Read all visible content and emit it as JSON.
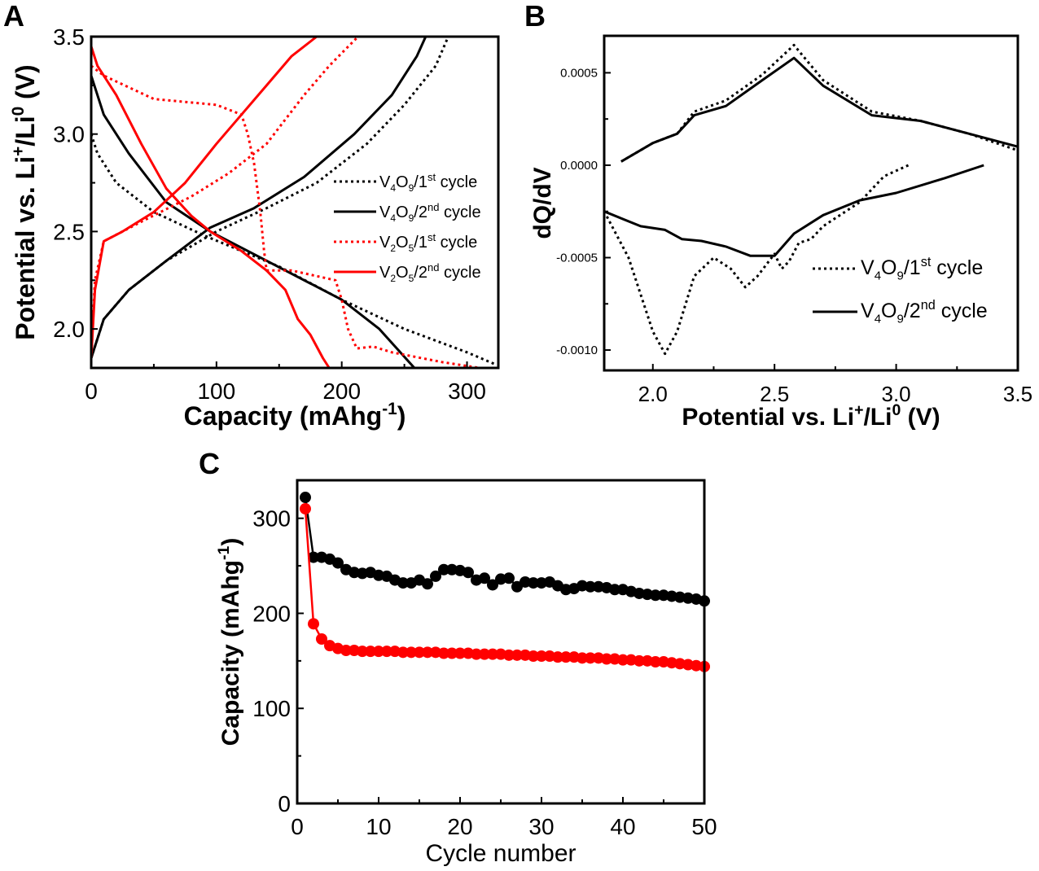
{
  "panels": {
    "a": "A",
    "b": "B",
    "c": "C"
  },
  "colors": {
    "black": "#000000",
    "red": "#ff0000",
    "tick_label_b": "#333333"
  },
  "chart_data": [
    {
      "id": "a",
      "type": "line",
      "title": "",
      "xlabel": [
        {
          "t": "Capacity (mAhg"
        },
        {
          "t": "-1",
          "s": "sup"
        },
        {
          "t": ")"
        }
      ],
      "ylabel": [
        {
          "t": "Potential vs. Li"
        },
        {
          "t": "+",
          "s": "sup"
        },
        {
          "t": "/Li"
        },
        {
          "t": "0",
          "s": "sup"
        },
        {
          "t": " (V)"
        }
      ],
      "xlim": [
        0,
        325
      ],
      "ylim": [
        1.8,
        3.5
      ],
      "xticks": [
        0,
        100,
        200,
        300
      ],
      "xtick_labels": [
        "0",
        "100",
        "200",
        "300"
      ],
      "yticks": [
        2.0,
        2.5,
        3.0,
        3.5
      ],
      "ytick_labels": [
        "2.0",
        "2.5",
        "3.0",
        "3.5"
      ],
      "grid": false,
      "legend_position": "right-middle",
      "series": [
        {
          "name": "V4O9/1st cycle",
          "legend": [
            {
              "t": "V"
            },
            {
              "t": "4",
              "s": "sub"
            },
            {
              "t": "O"
            },
            {
              "t": "9",
              "s": "sub"
            },
            {
              "t": "/1"
            },
            {
              "t": "st",
              "s": "sup"
            },
            {
              "t": " cycle"
            }
          ],
          "color": "#000000",
          "style": "dotted",
          "curves": [
            {
              "label": "discharge",
              "x": [
                0,
                5,
                20,
                50,
                90,
                150,
                200,
                250,
                300,
                322
              ],
              "y": [
                3.0,
                2.9,
                2.75,
                2.6,
                2.48,
                2.32,
                2.15,
                2.0,
                1.88,
                1.82
              ]
            },
            {
              "label": "charge",
              "x": [
                0,
                10,
                30,
                60,
                100,
                140,
                180,
                220,
                250,
                275,
                285
              ],
              "y": [
                1.85,
                2.05,
                2.2,
                2.35,
                2.5,
                2.62,
                2.75,
                2.95,
                3.15,
                3.35,
                3.5
              ]
            }
          ]
        },
        {
          "name": "V4O9/2nd cycle",
          "legend": [
            {
              "t": "V"
            },
            {
              "t": "4",
              "s": "sub"
            },
            {
              "t": "O"
            },
            {
              "t": "9",
              "s": "sub"
            },
            {
              "t": "/2"
            },
            {
              "t": "nd",
              "s": "sup"
            },
            {
              "t": " cycle"
            }
          ],
          "color": "#000000",
          "style": "solid",
          "curves": [
            {
              "label": "discharge",
              "x": [
                0,
                10,
                30,
                60,
                95,
                140,
                200,
                230,
                258
              ],
              "y": [
                3.3,
                3.1,
                2.9,
                2.65,
                2.5,
                2.35,
                2.15,
                2.0,
                1.8
              ]
            },
            {
              "label": "charge",
              "x": [
                0,
                10,
                30,
                60,
                95,
                130,
                170,
                210,
                240,
                260,
                267
              ],
              "y": [
                1.85,
                2.05,
                2.2,
                2.35,
                2.52,
                2.62,
                2.78,
                3.0,
                3.2,
                3.4,
                3.5
              ]
            }
          ]
        },
        {
          "name": "V2O5/1st cycle",
          "legend": [
            {
              "t": "V"
            },
            {
              "t": "2",
              "s": "sub"
            },
            {
              "t": "O"
            },
            {
              "t": "5",
              "s": "sub"
            },
            {
              "t": "/1"
            },
            {
              "t": "st",
              "s": "sup"
            },
            {
              "t": " cycle"
            }
          ],
          "color": "#ff0000",
          "style": "dotted",
          "curves": [
            {
              "label": "discharge",
              "x": [
                0,
                10,
                50,
                100,
                120,
                125,
                130,
                135,
                138,
                140,
                160,
                195,
                200,
                205,
                212,
                225,
                240,
                280,
                310
              ],
              "y": [
                3.35,
                3.3,
                3.18,
                3.15,
                3.1,
                3.0,
                2.85,
                2.6,
                2.4,
                2.3,
                2.3,
                2.25,
                2.15,
                2.0,
                1.9,
                1.91,
                1.88,
                1.83,
                1.8
              ]
            },
            {
              "label": "charge",
              "x": [
                0,
                3,
                10,
                40,
                80,
                110,
                140,
                170,
                190,
                213
              ],
              "y": [
                1.85,
                2.25,
                2.45,
                2.55,
                2.68,
                2.8,
                2.95,
                3.2,
                3.35,
                3.5
              ]
            }
          ]
        },
        {
          "name": "V2O5/2nd cycle",
          "legend": [
            {
              "t": "V"
            },
            {
              "t": "2",
              "s": "sub"
            },
            {
              "t": "O"
            },
            {
              "t": "5",
              "s": "sub"
            },
            {
              "t": "/2"
            },
            {
              "t": "nd",
              "s": "sup"
            },
            {
              "t": " cycle"
            }
          ],
          "color": "#ff0000",
          "style": "solid",
          "curves": [
            {
              "label": "discharge",
              "x": [
                0,
                5,
                20,
                40,
                60,
                80,
                95,
                120,
                140,
                155,
                165,
                175,
                185,
                190
              ],
              "y": [
                3.45,
                3.35,
                3.2,
                2.95,
                2.72,
                2.58,
                2.5,
                2.4,
                2.3,
                2.2,
                2.05,
                1.97,
                1.85,
                1.8
              ]
            },
            {
              "label": "charge",
              "x": [
                0,
                3,
                10,
                25,
                50,
                75,
                100,
                120,
                140,
                160,
                180
              ],
              "y": [
                1.85,
                2.2,
                2.45,
                2.5,
                2.6,
                2.75,
                2.95,
                3.1,
                3.25,
                3.4,
                3.5
              ]
            }
          ]
        }
      ]
    },
    {
      "id": "b",
      "type": "line",
      "title": "",
      "xlabel": [
        {
          "t": "Potential vs. Li"
        },
        {
          "t": "+",
          "s": "sup"
        },
        {
          "t": "/Li"
        },
        {
          "t": "0",
          "s": "sup"
        },
        {
          "t": " (V)"
        }
      ],
      "ylabel": [
        {
          "t": "dQ/dV"
        }
      ],
      "xlim": [
        1.8,
        3.5
      ],
      "ylim": [
        -0.00111,
        0.0007
      ],
      "xticks": [
        2.0,
        2.5,
        3.0,
        3.5
      ],
      "xtick_labels": [
        "2.0",
        "2.5",
        "3.0",
        "3.5"
      ],
      "yticks": [
        -0.001,
        -0.0005,
        0.0,
        0.0005
      ],
      "ytick_labels": [
        "-0.0010",
        "-0.0005",
        "0.0000",
        "0.0005"
      ],
      "grid": false,
      "legend_position": "bottom-right",
      "series": [
        {
          "name": "V4O9/1st cycle",
          "legend": [
            {
              "t": "V"
            },
            {
              "t": "4",
              "s": "sub"
            },
            {
              "t": "O"
            },
            {
              "t": "9",
              "s": "sub"
            },
            {
              "t": "/1"
            },
            {
              "t": "st",
              "s": "sup"
            },
            {
              "t": " cycle"
            }
          ],
          "color": "#000000",
          "style": "dotted",
          "curves": [
            {
              "label": "charge",
              "x": [
                1.87,
                2.0,
                2.1,
                2.17,
                2.3,
                2.45,
                2.58,
                2.7,
                2.9,
                3.1,
                3.3,
                3.5
              ],
              "y": [
                2e-05,
                0.00012,
                0.00017,
                0.00029,
                0.00035,
                0.00049,
                0.00065,
                0.00046,
                0.00029,
                0.00024,
                0.00017,
                8e-05
              ]
            },
            {
              "label": "discharge",
              "x": [
                1.8,
                1.9,
                2.0,
                2.05,
                2.1,
                2.17,
                2.25,
                2.32,
                2.38,
                2.43,
                2.5,
                2.53,
                2.56,
                2.6,
                2.65,
                2.7,
                2.85,
                2.95,
                3.05
              ],
              "y": [
                -0.00025,
                -0.0005,
                -0.0009,
                -0.00102,
                -0.0009,
                -0.0006,
                -0.0005,
                -0.00056,
                -0.00066,
                -0.0006,
                -0.00048,
                -0.00056,
                -0.00052,
                -0.00042,
                -0.0004,
                -0.00033,
                -0.0002,
                -6e-05,
                0.0
              ]
            }
          ]
        },
        {
          "name": "V4O9/2nd cycle",
          "legend": [
            {
              "t": "V"
            },
            {
              "t": "4",
              "s": "sub"
            },
            {
              "t": "O"
            },
            {
              "t": "9",
              "s": "sub"
            },
            {
              "t": "/2"
            },
            {
              "t": "nd",
              "s": "sup"
            },
            {
              "t": " cycle"
            }
          ],
          "color": "#000000",
          "style": "solid",
          "curves": [
            {
              "label": "charge",
              "x": [
                1.87,
                2.0,
                2.1,
                2.17,
                2.3,
                2.45,
                2.58,
                2.7,
                2.9,
                3.1,
                3.3,
                3.5
              ],
              "y": [
                2e-05,
                0.00012,
                0.00017,
                0.00027,
                0.00032,
                0.00046,
                0.00058,
                0.00043,
                0.00027,
                0.00024,
                0.00017,
                0.0001
              ]
            },
            {
              "label": "discharge",
              "x": [
                1.8,
                1.95,
                2.05,
                2.12,
                2.2,
                2.3,
                2.4,
                2.5,
                2.58,
                2.7,
                2.85,
                3.0,
                3.2,
                3.36
              ],
              "y": [
                -0.00025,
                -0.00033,
                -0.00035,
                -0.0004,
                -0.00041,
                -0.00044,
                -0.00049,
                -0.00049,
                -0.00037,
                -0.00027,
                -0.00019,
                -0.00015,
                -7e-05,
                0.0
              ]
            }
          ]
        }
      ]
    },
    {
      "id": "c",
      "type": "scatter",
      "title": "",
      "xlabel": [
        {
          "t": "Cycle number"
        }
      ],
      "ylabel": [
        {
          "t": "Capacity (mAhg"
        },
        {
          "t": "-1",
          "s": "sup"
        },
        {
          "t": ")"
        }
      ],
      "xlim": [
        0,
        50
      ],
      "ylim": [
        0,
        340
      ],
      "xticks": [
        0,
        10,
        20,
        30,
        40,
        50
      ],
      "xtick_labels": [
        "0",
        "10",
        "20",
        "30",
        "40",
        "50"
      ],
      "yticks": [
        0,
        100,
        200,
        300
      ],
      "ytick_labels": [
        "0",
        "100",
        "200",
        "300"
      ],
      "grid": false,
      "series": [
        {
          "name": "V4O9",
          "color": "#000000",
          "x": [
            1,
            2,
            3,
            4,
            5,
            6,
            7,
            8,
            9,
            10,
            11,
            12,
            13,
            14,
            15,
            16,
            17,
            18,
            19,
            20,
            21,
            22,
            23,
            24,
            25,
            26,
            27,
            28,
            29,
            30,
            31,
            32,
            33,
            34,
            35,
            36,
            37,
            38,
            39,
            40,
            41,
            42,
            43,
            44,
            45,
            46,
            47,
            48,
            49,
            50
          ],
          "y": [
            322,
            259,
            259,
            257,
            253,
            246,
            243,
            242,
            243,
            240,
            239,
            235,
            232,
            232,
            235,
            231,
            239,
            246,
            246,
            245,
            243,
            235,
            237,
            230,
            236,
            237,
            228,
            233,
            232,
            232,
            233,
            229,
            225,
            226,
            229,
            228,
            228,
            227,
            225,
            225,
            223,
            221,
            220,
            219,
            219,
            218,
            217,
            216,
            215,
            213
          ]
        },
        {
          "name": "V2O5",
          "color": "#ff0000",
          "x": [
            1,
            2,
            3,
            4,
            5,
            6,
            7,
            8,
            9,
            10,
            11,
            12,
            13,
            14,
            15,
            16,
            17,
            18,
            19,
            20,
            21,
            22,
            23,
            24,
            25,
            26,
            27,
            28,
            29,
            30,
            31,
            32,
            33,
            34,
            35,
            36,
            37,
            38,
            39,
            40,
            41,
            42,
            43,
            44,
            45,
            46,
            47,
            48,
            49,
            50
          ],
          "y": [
            310,
            189,
            173,
            166,
            163,
            161,
            161,
            160,
            160,
            160,
            160,
            160,
            159,
            159,
            159,
            159,
            159,
            158,
            158,
            158,
            158,
            157,
            157,
            157,
            157,
            156,
            156,
            156,
            155,
            155,
            155,
            154,
            154,
            154,
            153,
            153,
            153,
            152,
            152,
            151,
            151,
            150,
            150,
            149,
            149,
            148,
            147,
            146,
            145,
            144
          ]
        }
      ]
    }
  ]
}
